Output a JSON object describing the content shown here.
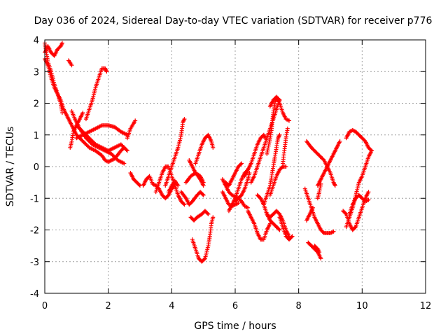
{
  "chart_data": {
    "type": "scatter",
    "title": "Day 036 of 2024, Sidereal Day-to-day VTEC variation (SDTVAR) for receiver p776",
    "xlabel": "GPS time / hours",
    "ylabel": "SDTVAR / TECUs",
    "xlim": [
      0,
      12
    ],
    "ylim": [
      -4,
      4
    ],
    "xticks": [
      0,
      2,
      4,
      6,
      8,
      10,
      12
    ],
    "yticks": [
      -4,
      -3,
      -2,
      -1,
      0,
      1,
      2,
      3,
      4
    ],
    "grid": true,
    "marker": "+",
    "color": "#ff0000",
    "segments": [
      [
        [
          0.0,
          3.9
        ],
        [
          0.05,
          3.6
        ],
        [
          0.1,
          3.3
        ],
        [
          0.2,
          3.0
        ],
        [
          0.3,
          2.6
        ],
        [
          0.4,
          2.3
        ],
        [
          0.5,
          2.0
        ],
        [
          0.55,
          1.7
        ]
      ],
      [
        [
          0.0,
          3.6
        ],
        [
          0.1,
          3.8
        ],
        [
          0.2,
          3.6
        ],
        [
          0.3,
          3.5
        ],
        [
          0.4,
          3.7
        ],
        [
          0.5,
          3.8
        ],
        [
          0.55,
          3.9
        ]
      ],
      [
        [
          0.0,
          3.4
        ],
        [
          0.1,
          3.2
        ],
        [
          0.2,
          2.8
        ],
        [
          0.3,
          2.5
        ],
        [
          0.4,
          2.3
        ],
        [
          0.5,
          2.1
        ],
        [
          0.6,
          1.8
        ],
        [
          0.7,
          1.6
        ],
        [
          0.8,
          1.4
        ],
        [
          0.9,
          1.2
        ],
        [
          1.0,
          1.0
        ],
        [
          1.1,
          0.9
        ],
        [
          1.2,
          0.8
        ],
        [
          1.4,
          0.6
        ],
        [
          1.6,
          0.5
        ],
        [
          1.8,
          0.35
        ],
        [
          1.9,
          0.2
        ],
        [
          2.0,
          0.15
        ],
        [
          2.2,
          0.25
        ],
        [
          2.4,
          0.5
        ],
        [
          2.5,
          0.6
        ]
      ],
      [
        [
          0.75,
          3.35
        ],
        [
          0.85,
          3.2
        ]
      ],
      [
        [
          0.8,
          0.6
        ],
        [
          0.85,
          0.8
        ],
        [
          0.9,
          1.1
        ],
        [
          1.0,
          1.3
        ],
        [
          1.1,
          1.5
        ],
        [
          1.2,
          1.7
        ]
      ],
      [
        [
          0.85,
          1.75
        ],
        [
          0.95,
          1.5
        ],
        [
          1.1,
          1.2
        ],
        [
          1.3,
          0.9
        ],
        [
          1.5,
          0.7
        ],
        [
          1.7,
          0.6
        ],
        [
          1.9,
          0.5
        ],
        [
          2.1,
          0.4
        ],
        [
          2.3,
          0.2
        ],
        [
          2.5,
          0.1
        ]
      ],
      [
        [
          1.0,
          0.9
        ],
        [
          1.2,
          1.0
        ],
        [
          1.4,
          1.1
        ],
        [
          1.6,
          1.2
        ],
        [
          1.8,
          1.3
        ],
        [
          2.0,
          1.3
        ],
        [
          2.2,
          1.25
        ],
        [
          2.4,
          1.1
        ],
        [
          2.6,
          1.0
        ]
      ],
      [
        [
          1.0,
          1.3
        ],
        [
          1.2,
          1.1
        ],
        [
          1.4,
          0.9
        ],
        [
          1.6,
          0.7
        ],
        [
          1.8,
          0.6
        ],
        [
          2.0,
          0.5
        ],
        [
          2.2,
          0.6
        ],
        [
          2.4,
          0.7
        ],
        [
          2.6,
          0.5
        ]
      ],
      [
        [
          1.3,
          1.5
        ],
        [
          1.4,
          1.8
        ],
        [
          1.5,
          2.1
        ],
        [
          1.6,
          2.5
        ],
        [
          1.7,
          2.8
        ],
        [
          1.8,
          3.1
        ],
        [
          1.9,
          3.1
        ],
        [
          1.95,
          3.0
        ]
      ],
      [
        [
          2.6,
          0.9
        ],
        [
          2.7,
          1.2
        ],
        [
          2.85,
          1.45
        ]
      ],
      [
        [
          2.7,
          -0.2
        ],
        [
          2.8,
          -0.4
        ],
        [
          2.9,
          -0.5
        ],
        [
          3.0,
          -0.6
        ]
      ],
      [
        [
          3.1,
          -0.6
        ],
        [
          3.2,
          -0.4
        ],
        [
          3.3,
          -0.3
        ],
        [
          3.4,
          -0.55
        ],
        [
          3.5,
          -0.6
        ],
        [
          3.6,
          -0.7
        ],
        [
          3.7,
          -0.9
        ],
        [
          3.8,
          -1.0
        ],
        [
          3.9,
          -0.9
        ],
        [
          4.0,
          -0.7
        ],
        [
          4.1,
          -0.6
        ]
      ],
      [
        [
          3.5,
          -0.8
        ],
        [
          3.6,
          -0.5
        ],
        [
          3.7,
          -0.2
        ],
        [
          3.8,
          0.0
        ],
        [
          3.9,
          0.0
        ],
        [
          4.0,
          -0.3
        ],
        [
          4.1,
          -0.6
        ],
        [
          4.2,
          -0.9
        ],
        [
          4.3,
          -1.1
        ],
        [
          4.4,
          -1.2
        ]
      ],
      [
        [
          3.8,
          -0.6
        ],
        [
          3.9,
          -0.3
        ],
        [
          4.0,
          0.0
        ],
        [
          4.1,
          0.3
        ],
        [
          4.2,
          0.6
        ],
        [
          4.3,
          1.0
        ],
        [
          4.35,
          1.4
        ],
        [
          4.4,
          1.5
        ]
      ],
      [
        [
          3.9,
          -0.8
        ],
        [
          4.0,
          -0.6
        ],
        [
          4.1,
          -0.45
        ],
        [
          4.2,
          -0.6
        ]
      ],
      [
        [
          4.3,
          -0.8
        ],
        [
          4.45,
          -1.0
        ],
        [
          4.55,
          -1.2
        ],
        [
          4.65,
          -1.1
        ],
        [
          4.8,
          -0.9
        ],
        [
          4.9,
          -0.8
        ],
        [
          5.0,
          -0.9
        ]
      ],
      [
        [
          4.45,
          -0.5
        ],
        [
          4.6,
          -0.3
        ],
        [
          4.75,
          -0.2
        ],
        [
          4.9,
          -0.3
        ],
        [
          5.0,
          -0.5
        ]
      ],
      [
        [
          4.55,
          0.2
        ],
        [
          4.65,
          0.0
        ],
        [
          4.75,
          -0.2
        ],
        [
          4.9,
          -0.4
        ],
        [
          5.0,
          -0.6
        ]
      ],
      [
        [
          4.6,
          -1.6
        ],
        [
          4.7,
          -1.7
        ],
        [
          4.8,
          -1.6
        ],
        [
          4.95,
          -1.5
        ],
        [
          5.05,
          -1.4
        ],
        [
          5.15,
          -1.5
        ]
      ],
      [
        [
          4.65,
          -2.3
        ],
        [
          4.75,
          -2.6
        ],
        [
          4.85,
          -2.9
        ],
        [
          4.95,
          -3.0
        ],
        [
          5.05,
          -2.9
        ],
        [
          5.15,
          -2.5
        ],
        [
          5.2,
          -2.2
        ],
        [
          5.25,
          -1.8
        ],
        [
          5.3,
          -1.6
        ]
      ],
      [
        [
          4.75,
          0.1
        ],
        [
          4.85,
          0.4
        ],
        [
          4.95,
          0.7
        ],
        [
          5.05,
          0.9
        ],
        [
          5.15,
          1.0
        ],
        [
          5.25,
          0.8
        ],
        [
          5.3,
          0.6
        ]
      ],
      [
        [
          5.6,
          -0.4
        ],
        [
          5.7,
          -0.6
        ],
        [
          5.8,
          -0.8
        ],
        [
          5.9,
          -0.9
        ],
        [
          6.0,
          -0.95
        ],
        [
          6.1,
          -1.0
        ],
        [
          6.2,
          -1.1
        ],
        [
          6.3,
          -1.25
        ],
        [
          6.4,
          -1.3
        ]
      ],
      [
        [
          5.6,
          -0.8
        ],
        [
          5.7,
          -1.0
        ],
        [
          5.8,
          -1.2
        ],
        [
          5.9,
          -1.25
        ],
        [
          6.0,
          -1.2
        ],
        [
          6.1,
          -1.15
        ]
      ],
      [
        [
          5.7,
          -0.5
        ],
        [
          5.8,
          -0.6
        ],
        [
          5.9,
          -0.4
        ],
        [
          6.0,
          -0.2
        ],
        [
          6.1,
          0.0
        ],
        [
          6.2,
          0.1
        ]
      ],
      [
        [
          5.8,
          -1.4
        ],
        [
          5.9,
          -1.2
        ],
        [
          6.0,
          -1.0
        ],
        [
          6.1,
          -0.7
        ],
        [
          6.2,
          -0.4
        ],
        [
          6.3,
          -0.2
        ],
        [
          6.4,
          -0.1
        ]
      ],
      [
        [
          6.0,
          -1.1
        ],
        [
          6.1,
          -1.0
        ],
        [
          6.2,
          -0.9
        ],
        [
          6.3,
          -0.7
        ],
        [
          6.4,
          -0.4
        ],
        [
          6.45,
          -0.2
        ]
      ],
      [
        [
          6.3,
          -0.3
        ],
        [
          6.4,
          -0.1
        ],
        [
          6.5,
          0.1
        ],
        [
          6.6,
          0.4
        ],
        [
          6.7,
          0.7
        ],
        [
          6.8,
          0.9
        ],
        [
          6.9,
          1.0
        ],
        [
          6.95,
          0.9
        ]
      ],
      [
        [
          6.4,
          -1.4
        ],
        [
          6.5,
          -1.6
        ],
        [
          6.6,
          -1.8
        ],
        [
          6.7,
          -2.1
        ],
        [
          6.8,
          -2.3
        ],
        [
          6.9,
          -2.3
        ],
        [
          7.0,
          -2.0
        ],
        [
          7.1,
          -1.8
        ]
      ],
      [
        [
          6.5,
          -0.5
        ],
        [
          6.6,
          -0.3
        ],
        [
          6.7,
          0.0
        ],
        [
          6.8,
          0.3
        ],
        [
          6.9,
          0.6
        ],
        [
          7.0,
          0.9
        ],
        [
          7.1,
          1.2
        ],
        [
          7.2,
          1.5
        ],
        [
          7.3,
          1.8
        ],
        [
          7.4,
          2.1
        ]
      ],
      [
        [
          6.7,
          -0.9
        ],
        [
          6.8,
          -1.0
        ],
        [
          6.9,
          -1.2
        ],
        [
          7.0,
          -1.5
        ],
        [
          7.1,
          -1.7
        ],
        [
          7.2,
          -1.8
        ],
        [
          7.3,
          -1.9
        ],
        [
          7.4,
          -2.0
        ]
      ],
      [
        [
          6.9,
          -1.2
        ],
        [
          7.0,
          -0.9
        ],
        [
          7.1,
          -0.6
        ],
        [
          7.15,
          -0.3
        ],
        [
          7.2,
          0.0
        ],
        [
          7.25,
          0.3
        ],
        [
          7.3,
          0.6
        ],
        [
          7.35,
          0.9
        ],
        [
          7.4,
          1.0
        ]
      ],
      [
        [
          7.0,
          -1.5
        ],
        [
          7.1,
          -1.6
        ],
        [
          7.2,
          -1.5
        ],
        [
          7.3,
          -1.4
        ],
        [
          7.4,
          -1.5
        ],
        [
          7.5,
          -1.7
        ],
        [
          7.6,
          -2.0
        ],
        [
          7.7,
          -2.2
        ]
      ],
      [
        [
          7.0,
          0.4
        ],
        [
          7.1,
          0.9
        ],
        [
          7.15,
          1.2
        ],
        [
          7.2,
          1.7
        ],
        [
          7.25,
          2.0
        ],
        [
          7.3,
          2.2
        ],
        [
          7.4,
          2.1
        ]
      ],
      [
        [
          7.1,
          1.9
        ],
        [
          7.2,
          2.1
        ],
        [
          7.3,
          2.2
        ],
        [
          7.4,
          2.0
        ],
        [
          7.5,
          1.7
        ],
        [
          7.6,
          1.5
        ],
        [
          7.7,
          1.45
        ]
      ],
      [
        [
          7.1,
          -0.9
        ],
        [
          7.2,
          -0.6
        ],
        [
          7.3,
          -0.3
        ],
        [
          7.4,
          -0.1
        ],
        [
          7.5,
          0.0
        ],
        [
          7.6,
          0.0
        ]
      ],
      [
        [
          7.4,
          -1.6
        ],
        [
          7.5,
          -1.9
        ],
        [
          7.6,
          -2.2
        ],
        [
          7.7,
          -2.3
        ],
        [
          7.8,
          -2.2
        ]
      ],
      [
        [
          7.5,
          0.1
        ],
        [
          7.55,
          0.5
        ],
        [
          7.6,
          0.9
        ],
        [
          7.65,
          1.2
        ]
      ],
      [
        [
          8.25,
          0.8
        ],
        [
          8.4,
          0.6
        ],
        [
          8.6,
          0.4
        ],
        [
          8.8,
          0.2
        ],
        [
          9.0,
          -0.2
        ],
        [
          9.1,
          -0.5
        ],
        [
          9.15,
          -0.6
        ]
      ],
      [
        [
          8.2,
          -0.7
        ],
        [
          8.3,
          -1.0
        ],
        [
          8.4,
          -1.3
        ],
        [
          8.5,
          -1.6
        ],
        [
          8.6,
          -1.8
        ],
        [
          8.7,
          -2.0
        ],
        [
          8.8,
          -2.1
        ],
        [
          8.9,
          -2.1
        ],
        [
          9.0,
          -2.1
        ],
        [
          9.1,
          -2.05
        ]
      ],
      [
        [
          8.25,
          -1.7
        ],
        [
          8.35,
          -1.5
        ],
        [
          8.45,
          -1.3
        ]
      ],
      [
        [
          8.3,
          -2.4
        ],
        [
          8.4,
          -2.5
        ],
        [
          8.5,
          -2.6
        ],
        [
          8.6,
          -2.7
        ],
        [
          8.7,
          -2.9
        ]
      ],
      [
        [
          8.5,
          -2.5
        ],
        [
          8.6,
          -2.6
        ],
        [
          8.65,
          -2.7
        ]
      ],
      [
        [
          8.6,
          -0.6
        ],
        [
          8.7,
          -0.4
        ],
        [
          8.8,
          -0.2
        ],
        [
          8.9,
          0.0
        ],
        [
          9.0,
          0.2
        ],
        [
          9.1,
          0.4
        ],
        [
          9.2,
          0.6
        ],
        [
          9.3,
          0.8
        ]
      ],
      [
        [
          8.6,
          -1.0
        ],
        [
          8.65,
          -0.8
        ],
        [
          8.7,
          -0.55
        ]
      ],
      [
        [
          9.4,
          -1.4
        ],
        [
          9.5,
          -1.5
        ],
        [
          9.6,
          -1.8
        ],
        [
          9.7,
          -2.0
        ],
        [
          9.8,
          -1.9
        ],
        [
          9.9,
          -1.6
        ],
        [
          10.0,
          -1.3
        ],
        [
          10.1,
          -1.0
        ],
        [
          10.2,
          -0.8
        ]
      ],
      [
        [
          9.5,
          0.9
        ],
        [
          9.6,
          1.1
        ],
        [
          9.7,
          1.15
        ],
        [
          9.8,
          1.1
        ],
        [
          9.9,
          1.0
        ],
        [
          10.0,
          0.9
        ],
        [
          10.1,
          0.8
        ],
        [
          10.2,
          0.6
        ],
        [
          10.3,
          0.5
        ]
      ],
      [
        [
          9.5,
          -1.9
        ],
        [
          9.6,
          -1.6
        ],
        [
          9.7,
          -1.3
        ],
        [
          9.8,
          -0.9
        ],
        [
          9.9,
          -0.5
        ],
        [
          10.0,
          -0.3
        ],
        [
          10.1,
          0.0
        ],
        [
          10.2,
          0.3
        ],
        [
          10.3,
          0.5
        ]
      ],
      [
        [
          9.6,
          -1.5
        ],
        [
          9.7,
          -1.2
        ],
        [
          9.8,
          -1.0
        ],
        [
          9.9,
          -0.9
        ],
        [
          10.0,
          -1.0
        ],
        [
          10.1,
          -1.1
        ],
        [
          10.2,
          -1.05
        ]
      ]
    ]
  }
}
